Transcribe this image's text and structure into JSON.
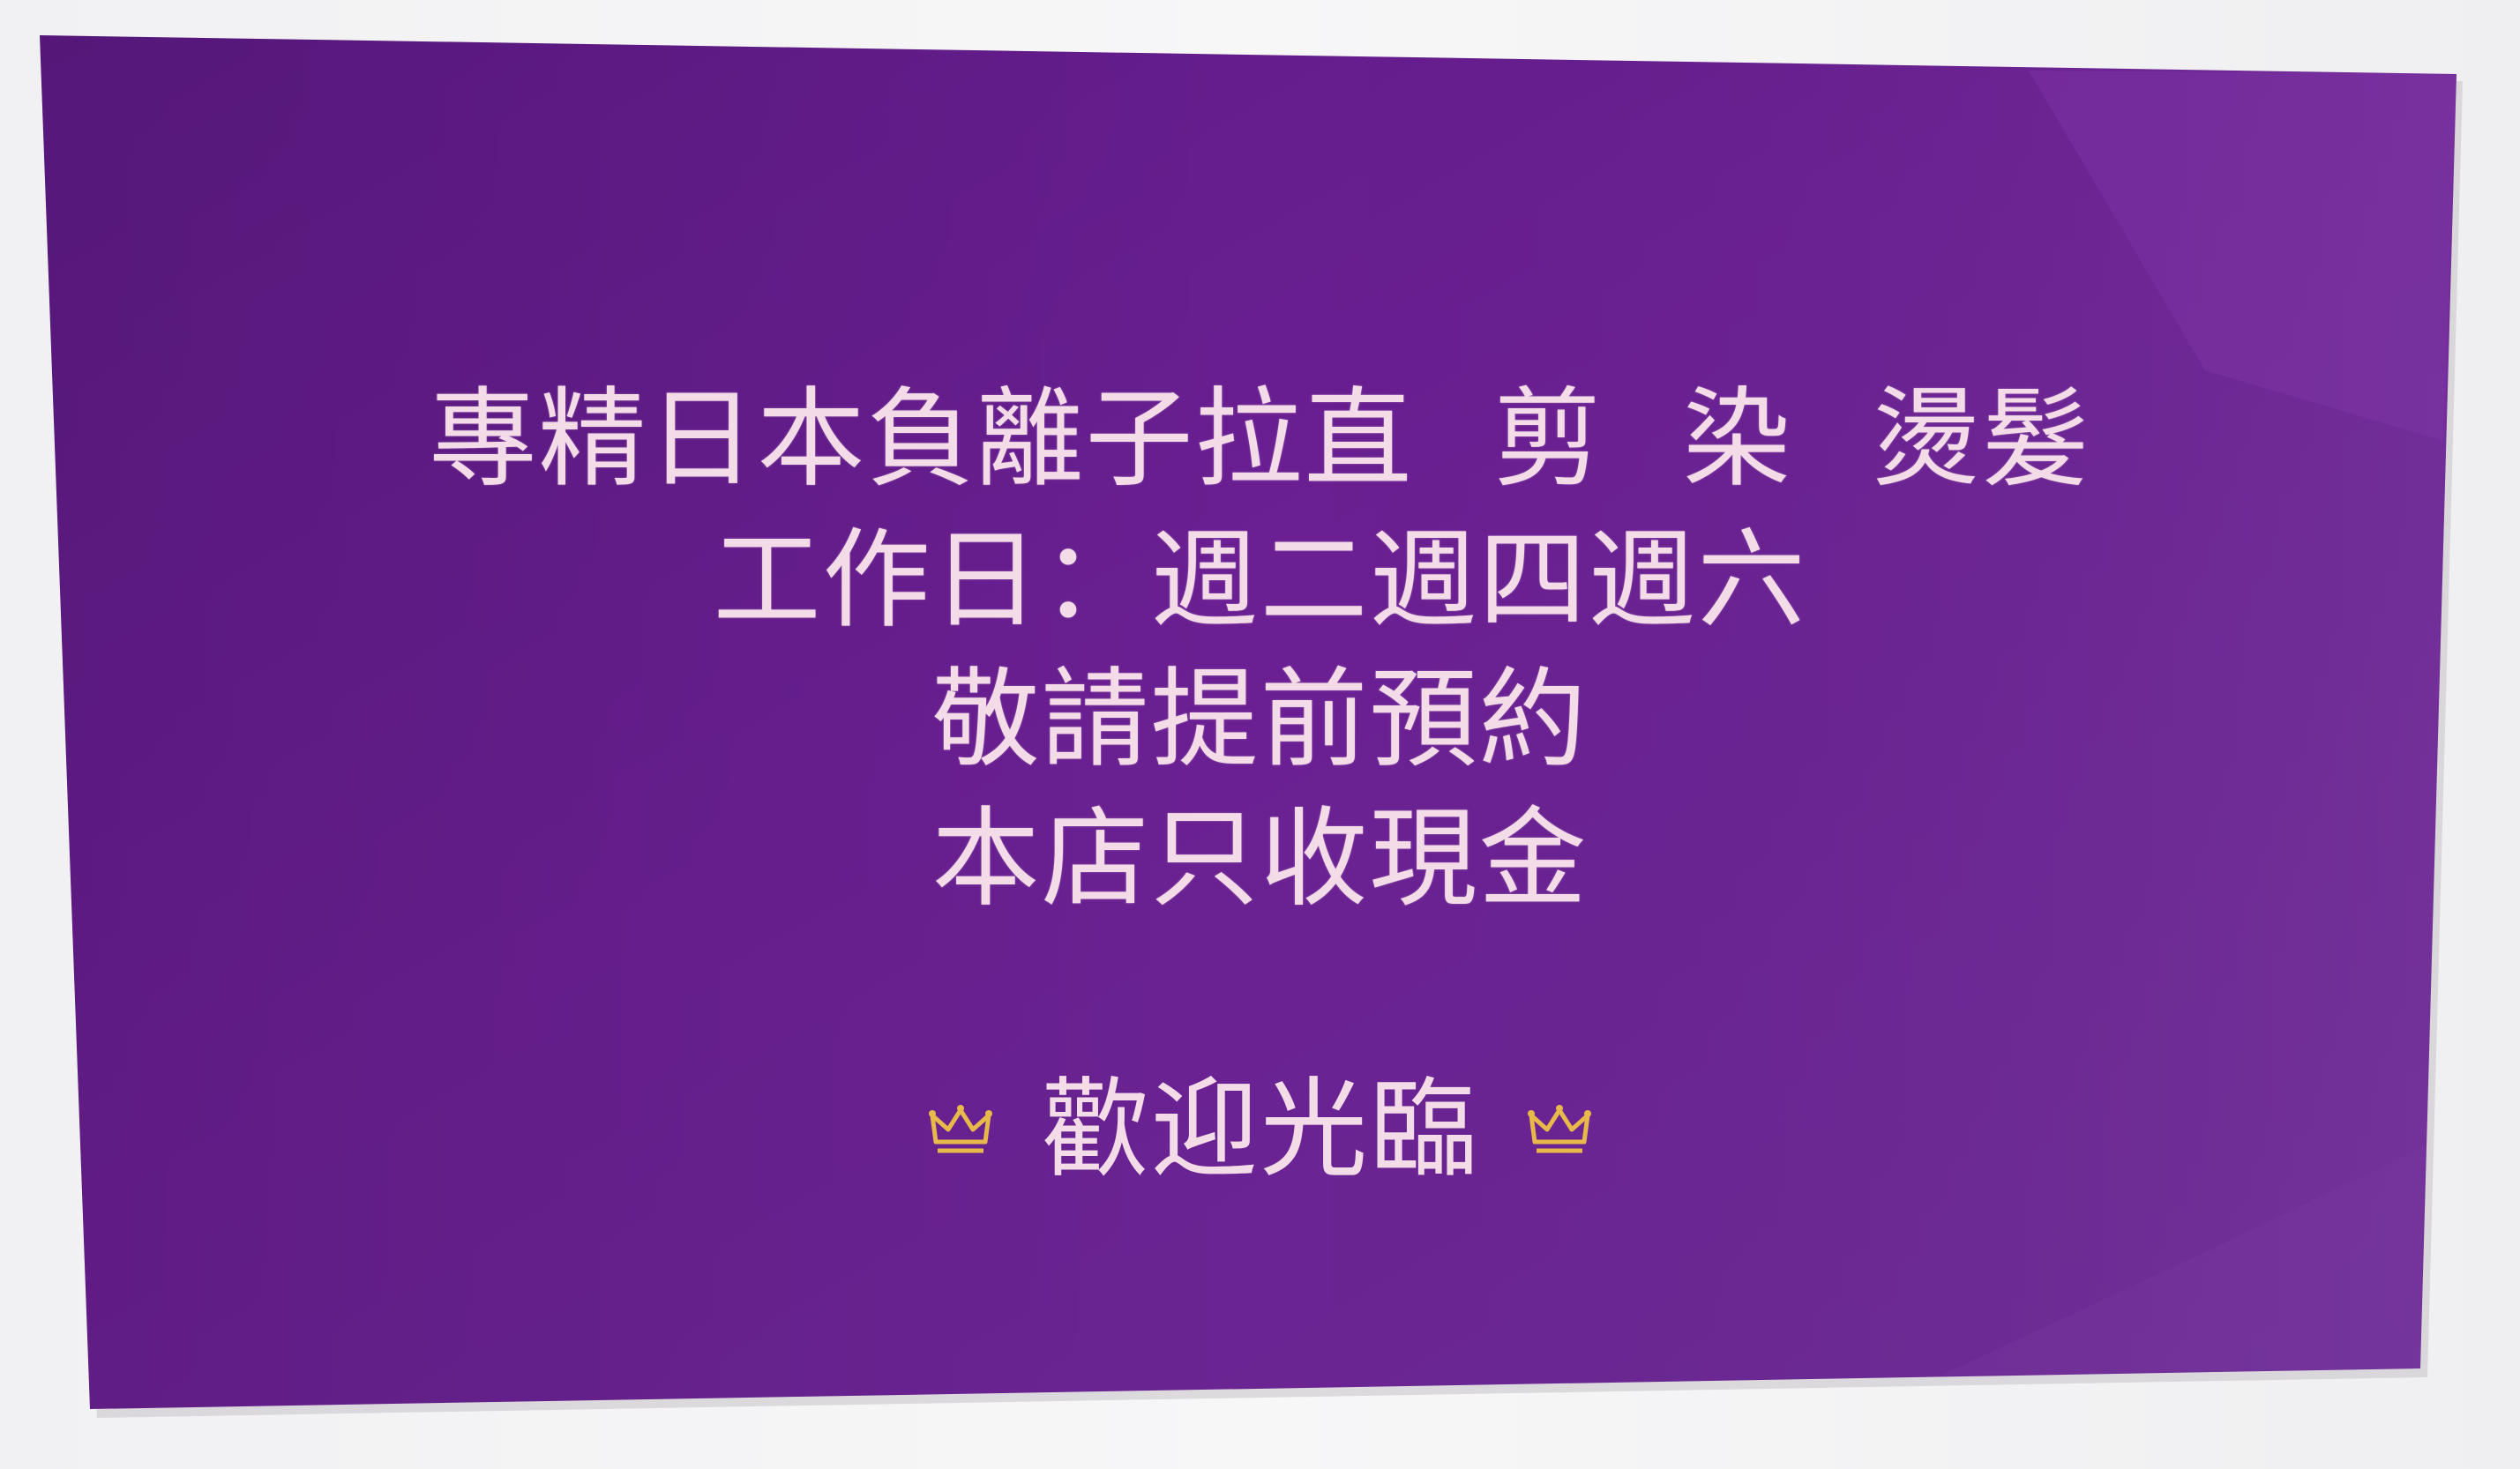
{
  "card": {
    "background_color": "#6a1f92",
    "edge_color": "#7b2ba6",
    "text_color": "#f3dbe8",
    "crown_color": "#e8b94a",
    "lines": [
      "專精日本負離子拉直 剪 染 燙髮",
      "工作日：週二週四週六",
      "敬請提前預約",
      "本店只收現金"
    ],
    "welcome": "歡迎光臨",
    "left_icon": "crown-icon",
    "right_icon": "crown-icon"
  }
}
